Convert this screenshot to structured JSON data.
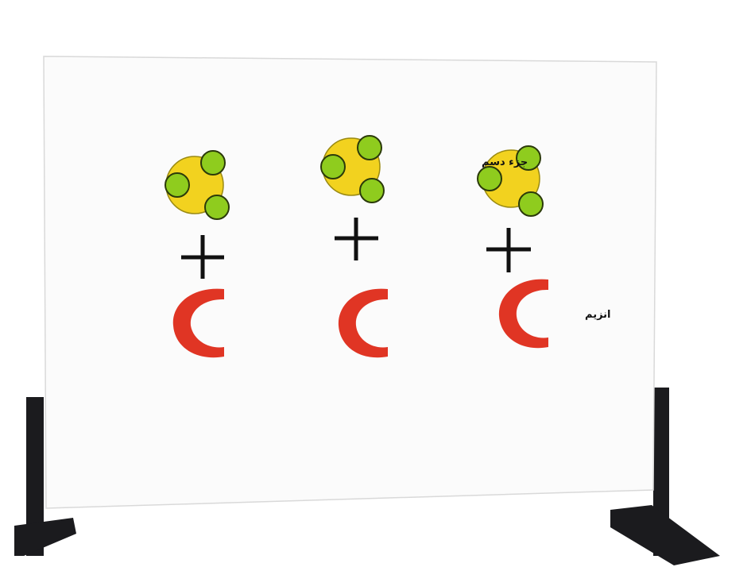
{
  "labels": {
    "substrate_label": "جزء دسم",
    "enzyme_label": "انزیم"
  },
  "colors": {
    "stand": "#1b1b1e",
    "board": "#fbfbfb",
    "board_edge": "#d9d9d9",
    "molecule_core": "#f2d21f",
    "molecule_core_edge": "#9a8a12",
    "molecule_ball": "#8fcc1e",
    "molecule_ball_edge": "#2b3a0a",
    "plus": "#111111",
    "enzyme": "#e03524"
  },
  "icons": {
    "substrate": "substrate-molecule-icon",
    "plus": "plus-icon",
    "enzyme": "enzyme-crescent-icon"
  },
  "groups": [
    {
      "name": "group-1"
    },
    {
      "name": "group-2"
    },
    {
      "name": "group-3"
    }
  ]
}
